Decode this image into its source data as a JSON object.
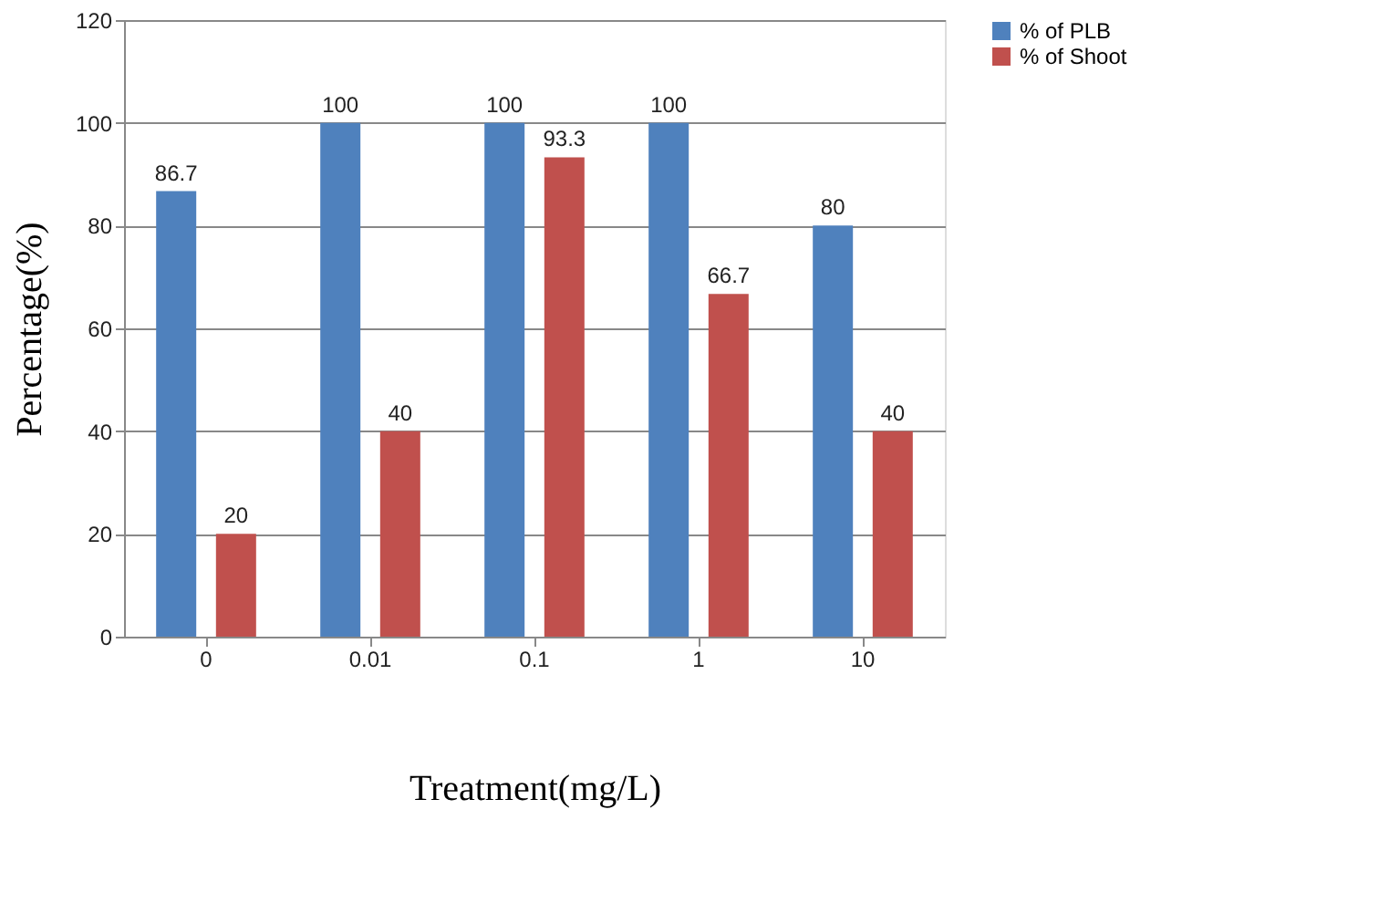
{
  "chart_data": {
    "type": "bar",
    "xlabel": "Treatment(mg/L)",
    "ylabel": "Percentage(%)",
    "categories": [
      "0",
      "0.01",
      "0.1",
      "1",
      "10"
    ],
    "series": [
      {
        "name": "% of PLB",
        "color": "#4f81bd",
        "values": [
          86.7,
          100,
          100,
          100,
          80
        ]
      },
      {
        "name": "% of Shoot",
        "color": "#c0504d",
        "values": [
          20,
          40,
          93.3,
          66.7,
          40
        ]
      }
    ],
    "ylim": [
      0,
      120
    ],
    "yticks": [
      0,
      20,
      40,
      60,
      80,
      100,
      120
    ],
    "grid": "y",
    "legend": "right",
    "data_labels": true
  }
}
